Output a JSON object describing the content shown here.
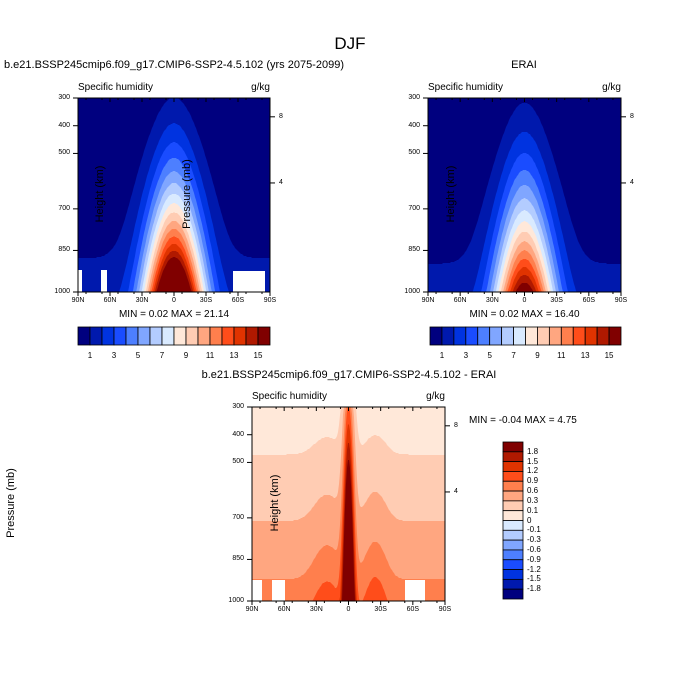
{
  "title": "DJF",
  "palette": [
    "#00007f",
    "#0019ad",
    "#0033e0",
    "#1a4cff",
    "#4d7fff",
    "#80a6ff",
    "#b3ccff",
    "#d9eaff",
    "#ffe8d9",
    "#ffccb3",
    "#ffa680",
    "#ff7f4d",
    "#ff4d1a",
    "#e03300",
    "#b01900",
    "#800000"
  ],
  "chart_data": [
    {
      "type": "heatmap",
      "title": "b.e21.BSSP245cmip6.f09_g17.CMIP6-SSP2-4.5.102 (yrs 2075-2099)",
      "left_label": "Specific humidity",
      "right_label": "g/kg",
      "ylabel": "Pressure (mb)",
      "ylabel_right": "Height (km)",
      "x_ticks": [
        "90N",
        "60N",
        "30N",
        "0",
        "30S",
        "60S",
        "90S"
      ],
      "y_ticks": [
        "300",
        "400",
        "500",
        "700",
        "850",
        "1000"
      ],
      "y_tick_values": [
        300,
        400,
        500,
        700,
        850,
        1000
      ],
      "y_right_ticks": [
        "8",
        "4"
      ],
      "ylim": [
        1000,
        300
      ],
      "xlim": [
        90,
        -90
      ],
      "stats": "MIN =   0.02  MAX =  21.14",
      "min": 0.02,
      "max": 21.14,
      "colorbar_labels": [
        "1",
        "3",
        "5",
        "7",
        "9",
        "11",
        "13",
        "15"
      ],
      "levels": [
        1,
        2,
        3,
        4,
        5,
        6,
        7,
        8,
        9,
        10,
        11,
        12,
        13,
        14,
        15
      ]
    },
    {
      "type": "heatmap",
      "title": "ERAI",
      "left_label": "Specific humidity",
      "right_label": "g/kg",
      "ylabel": "Pressure (mb)",
      "ylabel_right": "Height (km)",
      "x_ticks": [
        "90N",
        "60N",
        "30N",
        "0",
        "30S",
        "60S",
        "90S"
      ],
      "y_ticks": [
        "300",
        "400",
        "500",
        "700",
        "850",
        "1000"
      ],
      "y_tick_values": [
        300,
        400,
        500,
        700,
        850,
        1000
      ],
      "y_right_ticks": [
        "8",
        "4"
      ],
      "ylim": [
        1000,
        300
      ],
      "xlim": [
        90,
        -90
      ],
      "stats": "MIN =   0.02  MAX =  16.40",
      "min": 0.02,
      "max": 16.4,
      "colorbar_labels": [
        "1",
        "3",
        "5",
        "7",
        "9",
        "11",
        "13",
        "15"
      ],
      "levels": [
        1,
        2,
        3,
        4,
        5,
        6,
        7,
        8,
        9,
        10,
        11,
        12,
        13,
        14,
        15
      ]
    },
    {
      "type": "heatmap",
      "title": "b.e21.BSSP245cmip6.f09_g17.CMIP6-SSP2-4.5.102 - ERAI",
      "left_label": "Specific humidity",
      "right_label": "g/kg",
      "ylabel": "Pressure (mb)",
      "ylabel_right": "Height (km)",
      "x_ticks": [
        "90N",
        "60N",
        "30N",
        "0",
        "30S",
        "60S",
        "90S"
      ],
      "y_ticks": [
        "300",
        "400",
        "500",
        "700",
        "850",
        "1000"
      ],
      "y_tick_values": [
        300,
        400,
        500,
        700,
        850,
        1000
      ],
      "y_right_ticks": [
        "8",
        "4"
      ],
      "ylim": [
        1000,
        300
      ],
      "xlim": [
        90,
        -90
      ],
      "stats": "MIN =  -0.04  MAX =   4.75",
      "min": -0.04,
      "max": 4.75,
      "colorbar_labels": [
        "1.8",
        "1.5",
        "1.2",
        "0.9",
        "0.6",
        "0.3",
        "0.1",
        "0",
        "-0.1",
        "-0.3",
        "-0.6",
        "-0.9",
        "-1.2",
        "-1.5",
        "-1.8"
      ],
      "levels": [
        -1.8,
        -1.5,
        -1.2,
        -0.9,
        -0.6,
        -0.3,
        -0.1,
        0,
        0.1,
        0.3,
        0.6,
        0.9,
        1.2,
        1.5,
        1.8
      ]
    }
  ]
}
